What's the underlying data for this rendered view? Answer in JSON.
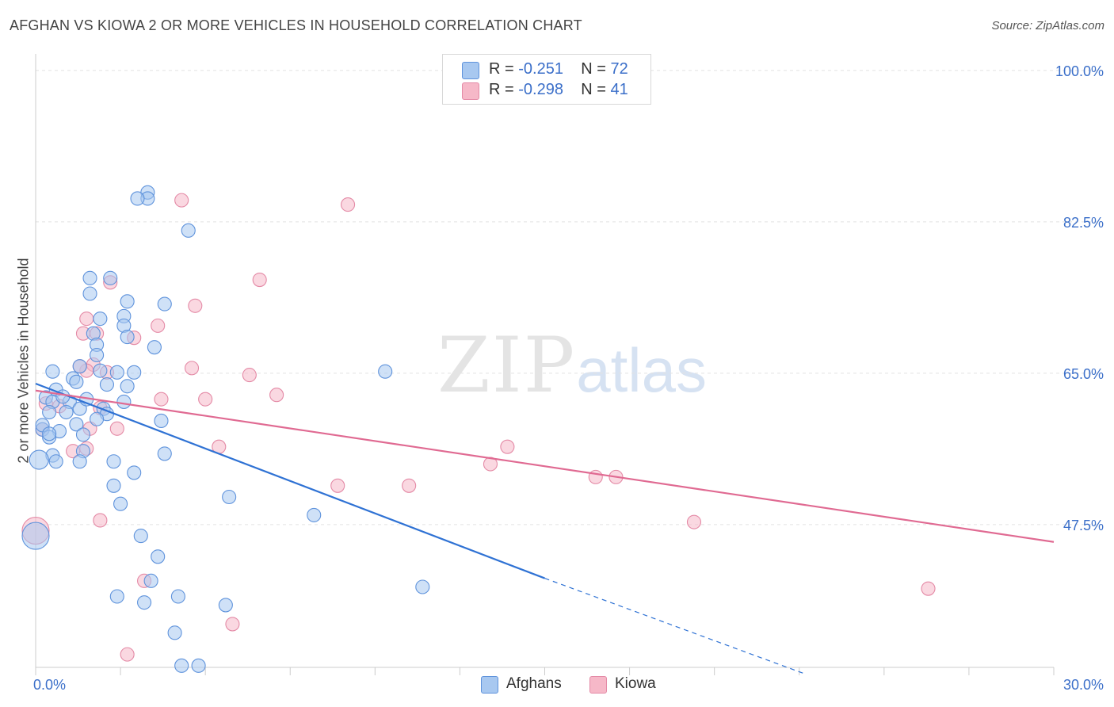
{
  "header": {
    "title": "AFGHAN VS KIOWA 2 OR MORE VEHICLES IN HOUSEHOLD CORRELATION CHART",
    "source": "Source: ZipAtlas.com"
  },
  "watermark": {
    "zip": "ZIP",
    "atlas": "atlas"
  },
  "legend_top": [
    {
      "r_label": "R =",
      "r_value": "-0.251",
      "n_label": "N =",
      "n_value": "72",
      "color": "#a8c8f0"
    },
    {
      "r_label": "R =",
      "r_value": "-0.298",
      "n_label": "N =",
      "n_value": "41",
      "color": "#f6b8c8"
    }
  ],
  "legend_bottom": [
    {
      "label": "Afghans",
      "color": "#a8c8f0"
    },
    {
      "label": "Kiowa",
      "color": "#f6b8c8"
    }
  ],
  "colors": {
    "afghans_fill": "#a8c8f0",
    "afghans_stroke": "#5f93dc",
    "afghans_line": "#2f72d4",
    "kiowa_fill": "#f6b8c8",
    "kiowa_stroke": "#e48aa6",
    "kiowa_line": "#e06a92",
    "tick_text": "#3b6fc9",
    "grid": "#e2e2e2"
  },
  "chart_data": {
    "type": "scatter",
    "title": "AFGHAN VS KIOWA 2 OR MORE VEHICLES IN HOUSEHOLD CORRELATION CHART",
    "xlabel": "",
    "ylabel": "2 or more Vehicles in Household",
    "xlim": [
      0,
      30
    ],
    "ylim": [
      31,
      101
    ],
    "x_tick_labels": [
      {
        "value": 0,
        "label": "0.0%"
      },
      {
        "value": 30,
        "label": "30.0%"
      }
    ],
    "y_tick_labels": [
      {
        "value": 100,
        "label": "100.0%"
      },
      {
        "value": 82.5,
        "label": "82.5%"
      },
      {
        "value": 65,
        "label": "65.0%"
      },
      {
        "value": 47.5,
        "label": "47.5%"
      }
    ],
    "grid": true,
    "legend_position": "top-center",
    "series": [
      {
        "name": "Afghans",
        "points": [
          [
            3.3,
            85.9
          ],
          [
            3.3,
            85.2
          ],
          [
            3.0,
            85.2
          ],
          [
            4.5,
            81.5
          ],
          [
            1.6,
            76.0
          ],
          [
            2.2,
            76.0
          ],
          [
            1.6,
            74.2
          ],
          [
            2.7,
            73.3
          ],
          [
            3.8,
            73.0
          ],
          [
            2.6,
            71.6
          ],
          [
            1.9,
            71.3
          ],
          [
            2.6,
            70.5
          ],
          [
            1.7,
            69.6
          ],
          [
            2.7,
            69.2
          ],
          [
            1.8,
            68.3
          ],
          [
            3.5,
            68.0
          ],
          [
            1.8,
            67.1
          ],
          [
            0.5,
            65.2
          ],
          [
            1.3,
            65.8
          ],
          [
            1.9,
            65.3
          ],
          [
            2.4,
            65.1
          ],
          [
            2.9,
            65.1
          ],
          [
            10.3,
            65.2
          ],
          [
            1.1,
            64.4
          ],
          [
            1.2,
            64.0
          ],
          [
            2.1,
            63.7
          ],
          [
            0.6,
            63.1
          ],
          [
            0.3,
            62.2
          ],
          [
            0.5,
            61.7
          ],
          [
            1.0,
            61.7
          ],
          [
            2.6,
            61.7
          ],
          [
            1.3,
            60.9
          ],
          [
            2.0,
            60.9
          ],
          [
            0.4,
            60.5
          ],
          [
            0.9,
            60.5
          ],
          [
            2.1,
            60.3
          ],
          [
            1.8,
            59.7
          ],
          [
            3.7,
            59.5
          ],
          [
            1.2,
            59.1
          ],
          [
            0.2,
            58.5
          ],
          [
            0.7,
            58.3
          ],
          [
            1.4,
            57.9
          ],
          [
            0.4,
            57.6
          ],
          [
            1.4,
            56.0
          ],
          [
            0.5,
            55.5
          ],
          [
            3.8,
            55.7
          ],
          [
            0.1,
            55.0
          ],
          [
            0.6,
            54.8
          ],
          [
            1.3,
            54.8
          ],
          [
            2.3,
            54.8
          ],
          [
            2.9,
            53.5
          ],
          [
            2.3,
            52.0
          ],
          [
            5.7,
            50.7
          ],
          [
            2.5,
            49.9
          ],
          [
            8.2,
            48.6
          ],
          [
            3.1,
            46.2
          ],
          [
            0.0,
            46.2
          ],
          [
            3.6,
            43.8
          ],
          [
            3.4,
            41.0
          ],
          [
            11.4,
            40.3
          ],
          [
            2.4,
            39.2
          ],
          [
            4.2,
            39.2
          ],
          [
            3.2,
            38.5
          ],
          [
            5.6,
            38.2
          ],
          [
            4.1,
            35.0
          ],
          [
            4.3,
            31.2
          ],
          [
            4.8,
            31.2
          ],
          [
            0.2,
            59.0
          ],
          [
            0.4,
            58.0
          ],
          [
            1.5,
            62.0
          ],
          [
            2.7,
            63.5
          ],
          [
            0.8,
            62.3
          ]
        ]
      },
      {
        "name": "Kiowa",
        "points": [
          [
            4.3,
            85.0
          ],
          [
            9.2,
            84.5
          ],
          [
            6.6,
            75.8
          ],
          [
            2.2,
            75.5
          ],
          [
            4.7,
            72.8
          ],
          [
            1.5,
            71.3
          ],
          [
            3.6,
            70.5
          ],
          [
            1.4,
            69.6
          ],
          [
            1.8,
            69.6
          ],
          [
            2.9,
            69.1
          ],
          [
            1.7,
            66.0
          ],
          [
            4.6,
            65.6
          ],
          [
            1.5,
            65.3
          ],
          [
            2.1,
            65.1
          ],
          [
            6.3,
            64.8
          ],
          [
            7.1,
            62.5
          ],
          [
            3.7,
            62.0
          ],
          [
            5.0,
            62.0
          ],
          [
            0.3,
            61.5
          ],
          [
            0.7,
            61.2
          ],
          [
            1.9,
            61.0
          ],
          [
            0.2,
            58.5
          ],
          [
            1.6,
            58.6
          ],
          [
            2.4,
            58.6
          ],
          [
            1.5,
            56.3
          ],
          [
            5.4,
            56.5
          ],
          [
            13.9,
            56.5
          ],
          [
            1.1,
            56.0
          ],
          [
            13.4,
            54.5
          ],
          [
            8.9,
            52.0
          ],
          [
            11.0,
            52.0
          ],
          [
            16.5,
            53.0
          ],
          [
            17.1,
            53.0
          ],
          [
            1.9,
            48.0
          ],
          [
            19.4,
            47.8
          ],
          [
            0.0,
            46.8
          ],
          [
            3.2,
            41.0
          ],
          [
            26.3,
            40.1
          ],
          [
            5.8,
            36.0
          ],
          [
            2.7,
            32.5
          ],
          [
            1.3,
            65.8
          ]
        ]
      }
    ],
    "trend_lines": [
      {
        "name": "Afghans",
        "solid": [
          [
            0,
            63.8
          ],
          [
            15,
            41.3
          ]
        ],
        "dashed": [
          [
            15,
            41.3
          ],
          [
            22.7,
            30.2
          ]
        ]
      },
      {
        "name": "Kiowa",
        "solid": [
          [
            0,
            63.0
          ],
          [
            30,
            45.5
          ]
        ]
      }
    ]
  }
}
